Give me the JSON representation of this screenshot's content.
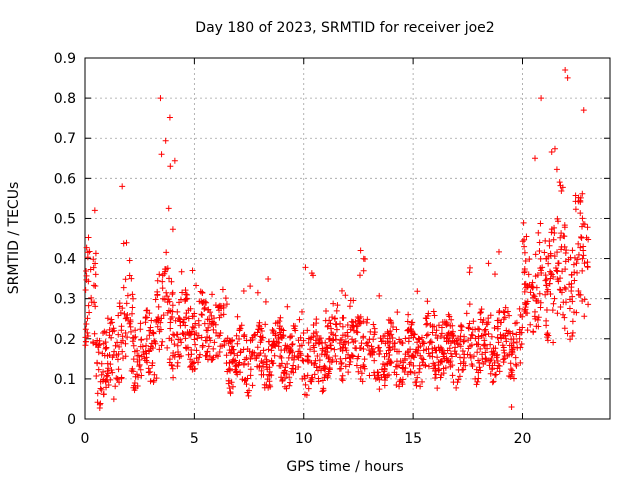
{
  "chart_data": {
    "type": "scatter",
    "title": "Day 180 of 2023, SRMTID for receiver joe2",
    "xlabel": "GPS time / hours",
    "ylabel": "SRMTID / TECUs",
    "xlim": [
      0,
      24
    ],
    "ylim": [
      0,
      0.9
    ],
    "x_ticks": [
      0,
      5,
      10,
      15,
      20
    ],
    "x_tick_labels": [
      "0",
      "5",
      "10",
      "15",
      "20"
    ],
    "y_ticks": [
      0,
      0.1,
      0.2,
      0.3,
      0.4,
      0.5,
      0.6,
      0.7,
      0.8,
      0.9
    ],
    "y_tick_labels": [
      "0",
      "0.1",
      "0.2",
      "0.3",
      "0.4",
      "0.5",
      "0.6",
      "0.7",
      "0.8",
      "0.9"
    ],
    "grid": true,
    "marker": "+",
    "color": "#ff0000",
    "point_count": 1700,
    "series": [
      {
        "name": "SRMTID",
        "notes": "Dense scatter of approximately 1700 points; values summarized by time segment (hours) with typical baseline, spread and occasional spikes.",
        "segments": [
          {
            "x_start": 0.0,
            "x_end": 0.5,
            "base": 0.28,
            "spread": 0.12,
            "spike_max": 0.52
          },
          {
            "x_start": 0.5,
            "x_end": 1.5,
            "base": 0.14,
            "spread": 0.09,
            "spike_max": 0.3
          },
          {
            "x_start": 1.5,
            "x_end": 2.2,
            "base": 0.22,
            "spread": 0.12,
            "spike_max": 0.58
          },
          {
            "x_start": 2.2,
            "x_end": 3.2,
            "base": 0.17,
            "spread": 0.08,
            "spike_max": 0.35
          },
          {
            "x_start": 3.2,
            "x_end": 4.2,
            "base": 0.26,
            "spread": 0.12,
            "spike_max": 0.8
          },
          {
            "x_start": 4.2,
            "x_end": 6.5,
            "base": 0.22,
            "spread": 0.08,
            "spike_max": 0.38
          },
          {
            "x_start": 6.5,
            "x_end": 8.5,
            "base": 0.15,
            "spread": 0.07,
            "spike_max": 0.38
          },
          {
            "x_start": 8.5,
            "x_end": 10.0,
            "base": 0.16,
            "spread": 0.07,
            "spike_max": 0.3
          },
          {
            "x_start": 10.0,
            "x_end": 11.0,
            "base": 0.15,
            "spread": 0.07,
            "spike_max": 0.4
          },
          {
            "x_start": 11.0,
            "x_end": 13.0,
            "base": 0.2,
            "spread": 0.08,
            "spike_max": 0.42
          },
          {
            "x_start": 13.0,
            "x_end": 15.5,
            "base": 0.16,
            "spread": 0.07,
            "spike_max": 0.36
          },
          {
            "x_start": 15.5,
            "x_end": 17.5,
            "base": 0.17,
            "spread": 0.07,
            "spike_max": 0.3
          },
          {
            "x_start": 17.5,
            "x_end": 20.0,
            "base": 0.19,
            "spread": 0.08,
            "spike_max": 0.45
          },
          {
            "x_start": 20.0,
            "x_end": 21.2,
            "base": 0.33,
            "spread": 0.12,
            "spike_max": 0.8
          },
          {
            "x_start": 21.2,
            "x_end": 22.5,
            "base": 0.38,
            "spread": 0.16,
            "spike_max": 0.87
          },
          {
            "x_start": 22.5,
            "x_end": 23.0,
            "base": 0.4,
            "spread": 0.14,
            "spike_max": 0.77
          }
        ],
        "notable_points": [
          {
            "x": 3.45,
            "y": 0.8
          },
          {
            "x": 3.5,
            "y": 0.66
          },
          {
            "x": 3.9,
            "y": 0.63
          },
          {
            "x": 1.7,
            "y": 0.58
          },
          {
            "x": 0.45,
            "y": 0.52
          },
          {
            "x": 12.6,
            "y": 0.42
          },
          {
            "x": 20.85,
            "y": 0.8
          },
          {
            "x": 21.95,
            "y": 0.87
          },
          {
            "x": 22.8,
            "y": 0.77
          },
          {
            "x": 19.5,
            "y": 0.03
          }
        ]
      }
    ]
  }
}
